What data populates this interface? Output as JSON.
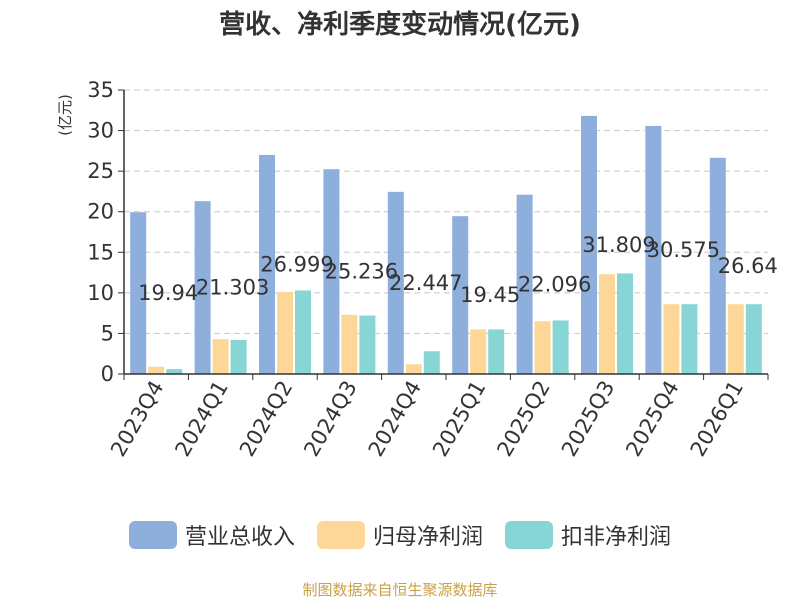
{
  "title": "营收、净利季度变动情况(亿元)",
  "source": "制图数据来自恒生聚源数据库",
  "chart_data": {
    "type": "bar",
    "ylabel": "(亿元)",
    "ylim": [
      0,
      35
    ],
    "yticks": [
      0,
      5,
      10,
      15,
      20,
      25,
      30,
      35
    ],
    "grid": true,
    "legend_position": "bottom",
    "categories": [
      "2023Q4",
      "2024Q1",
      "2024Q2",
      "2024Q3",
      "2024Q4",
      "2025Q1",
      "2025Q2",
      "2025Q3",
      "2025Q4",
      "2026Q1"
    ],
    "series": [
      {
        "name": "营业总收入",
        "color": "#8eaedc",
        "values": [
          19.94,
          21.303,
          26.999,
          25.236,
          22.447,
          19.45,
          22.096,
          31.809,
          30.575,
          26.64
        ],
        "labels": [
          "19.94",
          "21.303",
          "26.999",
          "25.236",
          "22.447",
          "19.45",
          "22.096",
          "31.809",
          "30.575",
          "26.64"
        ]
      },
      {
        "name": "归母净利润",
        "color": "#fdd797",
        "values": [
          0.9,
          4.3,
          10.1,
          7.3,
          1.2,
          5.5,
          6.5,
          12.3,
          8.6,
          8.6
        ]
      },
      {
        "name": "扣非净利润",
        "color": "#88d5d6",
        "values": [
          0.6,
          4.2,
          10.3,
          7.2,
          2.8,
          5.5,
          6.6,
          12.4,
          8.6,
          8.6
        ]
      }
    ]
  }
}
